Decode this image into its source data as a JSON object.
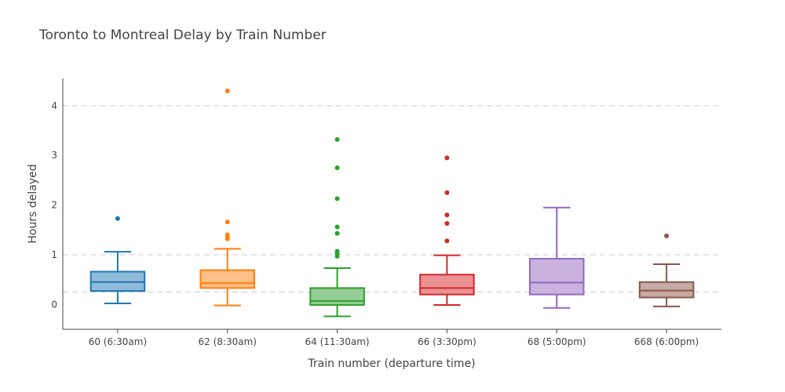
{
  "chart_data": {
    "type": "box",
    "title": "Toronto to Montreal Delay by Train Number",
    "xlabel": "Train number (departure time)",
    "ylabel": "Hours delayed",
    "ylim": [
      -0.5,
      4.55
    ],
    "yticks": [
      0,
      1,
      2,
      3,
      4
    ],
    "gridlines_y": [
      0.25,
      1,
      4
    ],
    "grid": "horizontal-dashed",
    "categories": [
      "60 (6:30am)",
      "62 (8:30am)",
      "64 (11:30am)",
      "66 (3:30pm)",
      "68 (5:00pm)",
      "668 (6:00pm)"
    ],
    "series": [
      {
        "category": "60 (6:30am)",
        "color": "#1f77b4",
        "fill": "#8fbbd9",
        "whisker_low": 0.02,
        "q1": 0.27,
        "median": 0.45,
        "q3": 0.66,
        "whisker_high": 1.06,
        "outliers": [
          1.73
        ]
      },
      {
        "category": "62 (8:30am)",
        "color": "#ff7f0e",
        "fill": "#ffbf86",
        "whisker_low": -0.02,
        "q1": 0.33,
        "median": 0.43,
        "q3": 0.69,
        "whisker_high": 1.12,
        "outliers": [
          1.32,
          1.36,
          1.4,
          1.66,
          4.3
        ]
      },
      {
        "category": "64 (11:30am)",
        "color": "#2ca02c",
        "fill": "#95cf95",
        "whisker_low": -0.24,
        "q1": -0.01,
        "median": 0.07,
        "q3": 0.33,
        "whisker_high": 0.73,
        "outliers": [
          0.97,
          1.02,
          1.07,
          1.43,
          1.56,
          2.13,
          2.75,
          3.32
        ]
      },
      {
        "category": "66 (3:30pm)",
        "color": "#d62728",
        "fill": "#ea9293",
        "whisker_low": -0.01,
        "q1": 0.2,
        "median": 0.33,
        "q3": 0.6,
        "whisker_high": 0.99,
        "outliers": [
          1.28,
          1.63,
          1.8,
          2.25,
          2.95
        ]
      },
      {
        "category": "68 (5:00pm)",
        "color": "#9467bd",
        "fill": "#c9b3de",
        "whisker_low": -0.07,
        "q1": 0.2,
        "median": 0.44,
        "q3": 0.92,
        "whisker_high": 1.95,
        "outliers": []
      },
      {
        "category": "668 (6:00pm)",
        "color": "#8c564b",
        "fill": "#c5aaa5",
        "whisker_low": -0.04,
        "q1": 0.14,
        "median": 0.28,
        "q3": 0.45,
        "whisker_high": 0.81,
        "outliers": [
          1.38
        ]
      }
    ]
  }
}
